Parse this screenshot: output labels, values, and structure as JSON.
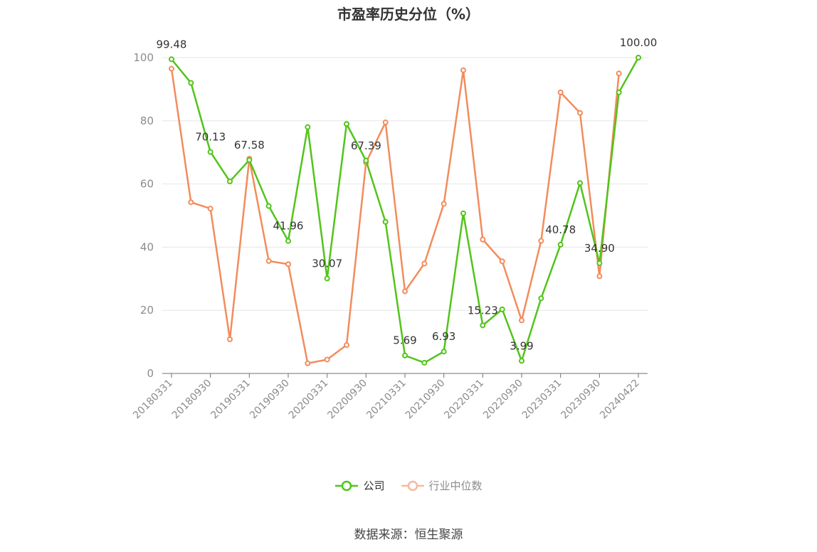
{
  "chart_data": {
    "type": "line",
    "title": "市盈率历史分位（%）",
    "source": "数据来源：恒生聚源",
    "x": [
      "20180331",
      "20180630",
      "20180930",
      "20181231",
      "20190331",
      "20190630",
      "20190930",
      "20191231",
      "20200331",
      "20200630",
      "20200930",
      "20201231",
      "20210331",
      "20210630",
      "20210930",
      "20211231",
      "20220331",
      "20220630",
      "20220930",
      "20221231",
      "20230331",
      "20230630",
      "20230930",
      "20231231",
      "20240422"
    ],
    "xtick_labels": [
      "20180331",
      "20180930",
      "20190331",
      "20190930",
      "20200331",
      "20200930",
      "20210331",
      "20210930",
      "20220331",
      "20220930",
      "20230331",
      "20230930",
      "20240422"
    ],
    "ylim": [
      0,
      100
    ],
    "yticks": [
      0,
      20,
      40,
      60,
      80,
      100
    ],
    "grid": true,
    "legend_position": "bottom",
    "series": [
      {
        "name": "公司",
        "color": "#52c41a",
        "values": [
          99.48,
          92.0,
          70.13,
          60.8,
          67.58,
          53.0,
          41.96,
          78.0,
          30.07,
          79.0,
          67.39,
          48.0,
          5.69,
          3.4,
          6.93,
          50.7,
          15.23,
          20.3,
          3.99,
          23.8,
          40.78,
          60.3,
          34.9,
          89.0,
          100.0
        ],
        "labels": {
          "0": "99.48",
          "2": "70.13",
          "4": "67.58",
          "6": "41.96",
          "8": "30.07",
          "10": "67.39",
          "12": "5.69",
          "14": "6.93",
          "16": "15.23",
          "18": "3.99",
          "20": "40.78",
          "22": "34.90",
          "24": "100.00"
        }
      },
      {
        "name": "行业中位数",
        "color": "#f28c5c",
        "values": [
          96.5,
          54.2,
          52.2,
          10.8,
          68.0,
          35.6,
          34.6,
          3.2,
          4.4,
          9.0,
          66.8,
          79.5,
          26.0,
          34.8,
          53.7,
          96.0,
          42.4,
          35.5,
          16.8,
          42.0,
          89.0,
          82.5,
          30.8,
          95.0,
          null
        ]
      }
    ]
  }
}
